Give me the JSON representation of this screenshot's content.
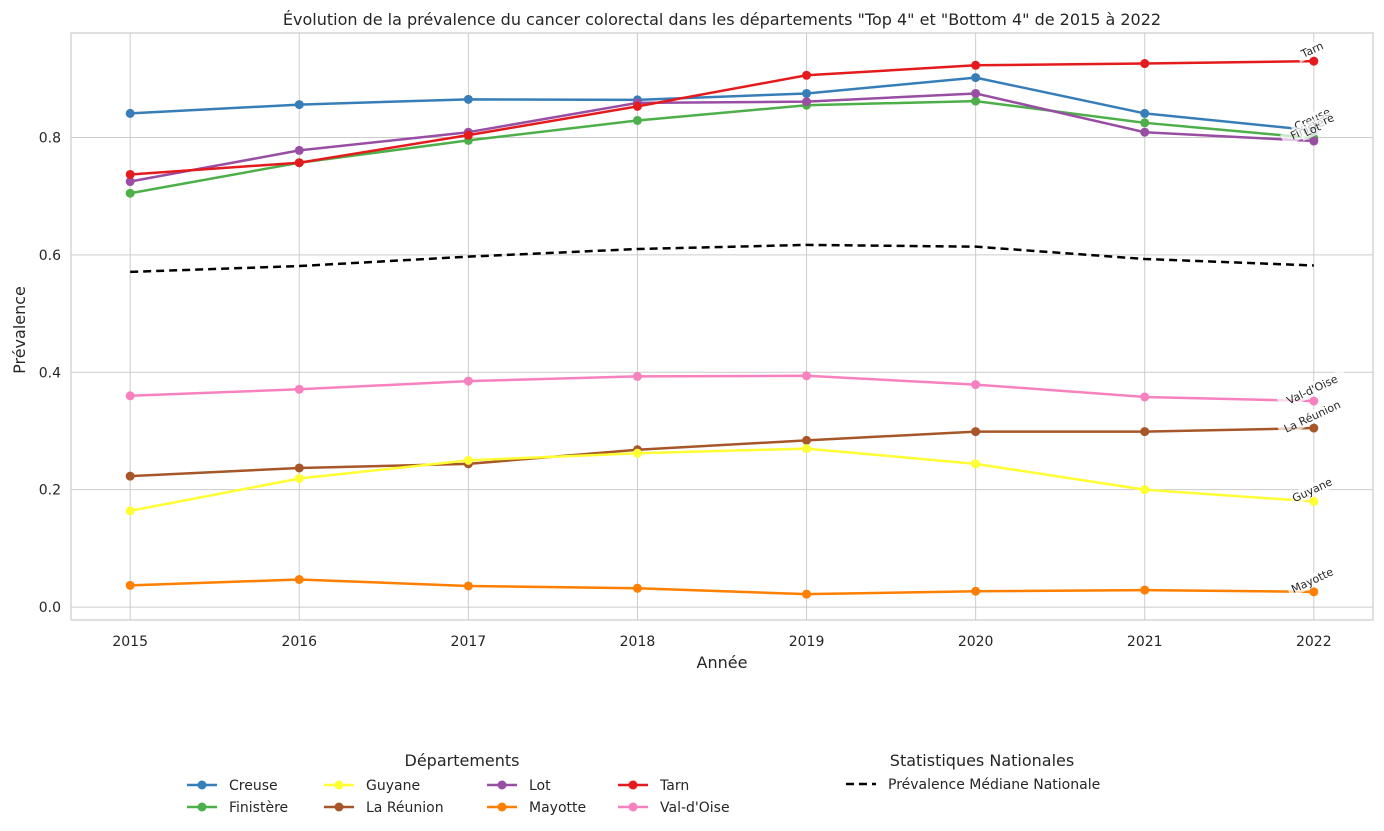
{
  "chart_data": {
    "type": "line",
    "title": "Évolution de la prévalence du cancer colorectal dans les départements \"Top 4\" et \"Bottom 4\" de 2015 à 2022",
    "xlabel": "Année",
    "ylabel": "Prévalence",
    "x": [
      2015,
      2016,
      2017,
      2018,
      2019,
      2020,
      2021,
      2022
    ],
    "xlim": [
      2014.65,
      2022.35
    ],
    "ylim": [
      -0.022,
      0.978
    ],
    "yticks": [
      0.0,
      0.2,
      0.4,
      0.6,
      0.8
    ],
    "ytick_labels": [
      "0.0",
      "0.2",
      "0.4",
      "0.6",
      "0.8"
    ],
    "xtick_labels": [
      "2015",
      "2016",
      "2017",
      "2018",
      "2019",
      "2020",
      "2021",
      "2022"
    ],
    "grid": true,
    "series": [
      {
        "name": "Creuse",
        "color": "#377eb8",
        "values": [
          0.841,
          0.856,
          0.865,
          0.864,
          0.875,
          0.902,
          0.841,
          0.812
        ]
      },
      {
        "name": "Finistère",
        "color": "#4daf4a",
        "values": [
          0.705,
          0.757,
          0.795,
          0.829,
          0.855,
          0.862,
          0.825,
          0.799
        ]
      },
      {
        "name": "Guyane",
        "color": "#ffff33",
        "values": [
          0.164,
          0.219,
          0.25,
          0.262,
          0.27,
          0.244,
          0.2,
          0.18
        ]
      },
      {
        "name": "La Réunion",
        "color": "#a65628",
        "values": [
          0.223,
          0.237,
          0.244,
          0.268,
          0.284,
          0.299,
          0.299,
          0.305
        ]
      },
      {
        "name": "Lot",
        "color": "#984ea3",
        "values": [
          0.725,
          0.778,
          0.809,
          0.859,
          0.861,
          0.875,
          0.809,
          0.794
        ]
      },
      {
        "name": "Mayotte",
        "color": "#ff7f00",
        "values": [
          0.037,
          0.047,
          0.036,
          0.032,
          0.022,
          0.027,
          0.029,
          0.026
        ]
      },
      {
        "name": "Tarn",
        "color": "#e41a1c",
        "values": [
          0.737,
          0.757,
          0.804,
          0.853,
          0.906,
          0.923,
          0.926,
          0.93
        ]
      },
      {
        "name": "Val-d'Oise",
        "color": "#f781bf",
        "values": [
          0.36,
          0.371,
          0.385,
          0.393,
          0.394,
          0.379,
          0.358,
          0.351
        ]
      }
    ],
    "median_series": {
      "name": "Prévalence Médiane Nationale",
      "color": "#000000",
      "values": [
        0.571,
        0.581,
        0.597,
        0.61,
        0.617,
        0.614,
        0.593,
        0.582
      ]
    },
    "legend": {
      "placement": "bottom",
      "departments_title": "Départements",
      "national_title": "Statistiques Nationales"
    }
  }
}
